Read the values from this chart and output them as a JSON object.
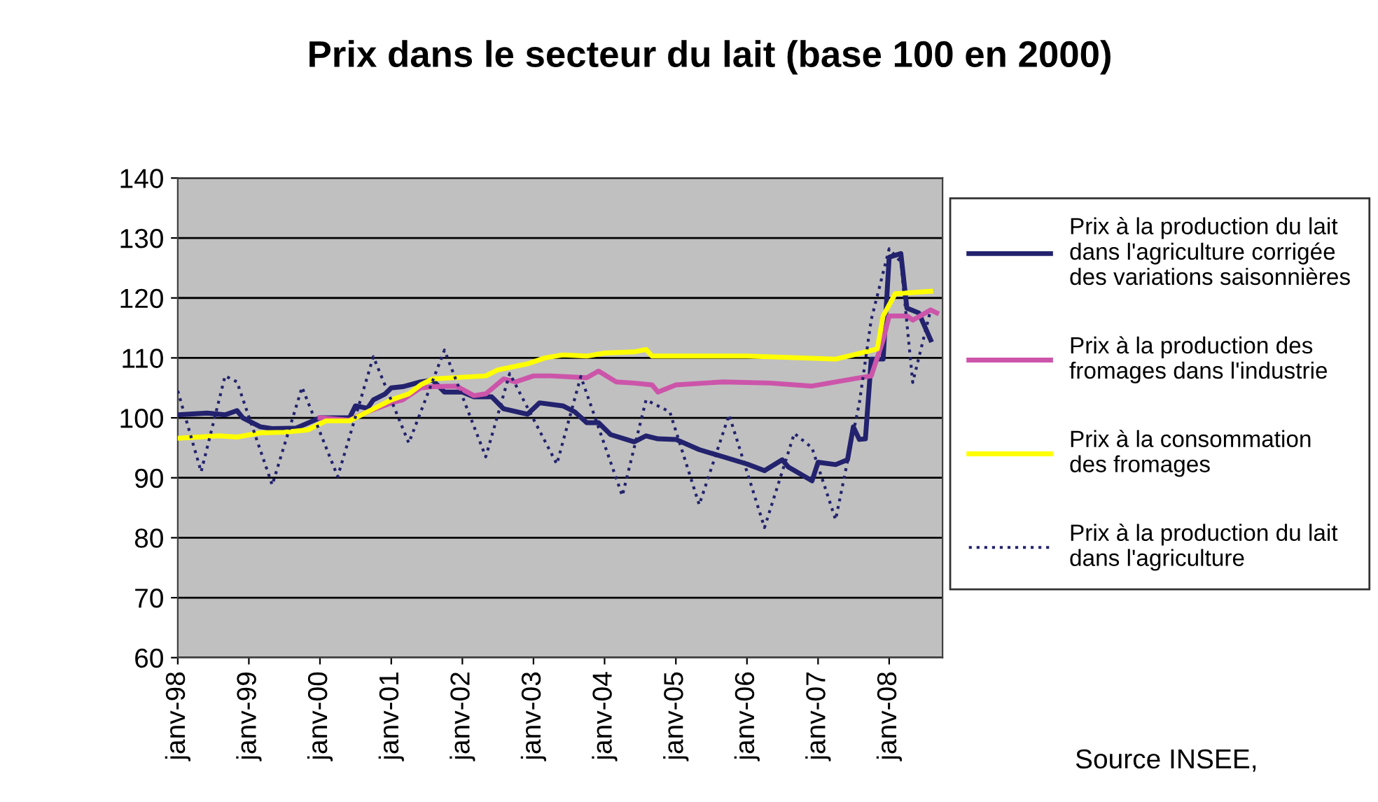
{
  "chart_data": {
    "type": "line",
    "title": "Prix dans le secteur du lait (base 100 en 2000)",
    "xlim": [
      "1998-01",
      "2008-10"
    ],
    "xticks": [
      {
        "value": "1998-01",
        "label": "janv-98"
      },
      {
        "value": "1999-01",
        "label": "janv-99"
      },
      {
        "value": "2000-01",
        "label": "janv-00"
      },
      {
        "value": "2001-01",
        "label": "janv-01"
      },
      {
        "value": "2002-01",
        "label": "janv-02"
      },
      {
        "value": "2003-01",
        "label": "janv-03"
      },
      {
        "value": "2004-01",
        "label": "janv-04"
      },
      {
        "value": "2005-01",
        "label": "janv-05"
      },
      {
        "value": "2006-01",
        "label": "janv-06"
      },
      {
        "value": "2007-01",
        "label": "janv-07"
      },
      {
        "value": "2008-01",
        "label": "janv-08"
      }
    ],
    "ylim": [
      60,
      140
    ],
    "yticks": [
      60,
      70,
      80,
      90,
      100,
      110,
      120,
      130,
      140
    ],
    "grid": "y",
    "legend": "right",
    "annotations": [
      "Source INSEE,"
    ],
    "series": [
      {
        "name": "Prix à la production du lait\ndans l'agriculture corrigée\ndes variations saisonnières",
        "color": "#22226e",
        "line_style": "solid",
        "x": [
          "1998-01",
          "1998-06",
          "1998-09",
          "1998-11",
          "1998-12",
          "1999-03",
          "1999-05",
          "1999-09",
          "2000-01",
          "2000-06",
          "2000-07",
          "2000-09",
          "2000-10",
          "2000-12",
          "2001-01",
          "2001-03",
          "2001-06",
          "2001-08",
          "2001-10",
          "2002-01",
          "2002-03",
          "2002-06",
          "2002-08",
          "2002-12",
          "2003-02",
          "2003-06",
          "2003-08",
          "2003-10",
          "2003-12",
          "2004-02",
          "2004-06",
          "2004-08",
          "2004-10",
          "2005-01",
          "2005-05",
          "2006-01",
          "2006-04",
          "2006-07",
          "2006-08",
          "2006-12",
          "2007-01",
          "2007-04",
          "2007-06",
          "2007-07",
          "2007-08",
          "2007-09",
          "2007-10",
          "2007-12",
          "2008-01",
          "2008-03",
          "2008-04",
          "2008-06",
          "2008-08"
        ],
        "values": [
          100.5,
          100.8,
          100.5,
          101.2,
          100,
          98.5,
          98.2,
          98.3,
          100,
          100,
          102,
          101.6,
          103,
          104,
          105,
          105.2,
          106,
          106.3,
          104.3,
          104.3,
          103.5,
          103.5,
          101.5,
          100.6,
          102.5,
          102,
          101,
          99.2,
          99.2,
          97.2,
          96,
          97,
          96.5,
          96.4,
          94.7,
          92.3,
          91.2,
          93,
          91.8,
          89.5,
          92.6,
          92.2,
          93,
          98.5,
          96.4,
          96.5,
          109.8,
          109.8,
          126.8,
          127.4,
          118.3,
          117.5,
          113
        ]
      },
      {
        "name": "Prix à la production des\nfromages dans l'industrie",
        "color": "#cc55aa",
        "line_style": "solid",
        "x": [
          "2000-01",
          "2000-06",
          "2000-09",
          "2001-01",
          "2001-03",
          "2001-06",
          "2001-08",
          "2001-12",
          "2002-03",
          "2002-05",
          "2002-08",
          "2002-10",
          "2003-01",
          "2003-04",
          "2003-10",
          "2003-12",
          "2004-03",
          "2004-06",
          "2004-09",
          "2004-10",
          "2005-01",
          "2005-09",
          "2006-05",
          "2006-12",
          "2007-07",
          "2007-10",
          "2007-12",
          "2008-01",
          "2008-04",
          "2008-05",
          "2008-08",
          "2008-09"
        ],
        "values": [
          100,
          99.6,
          101,
          102.5,
          103,
          105,
          105.2,
          105.3,
          103.7,
          104,
          106.5,
          106,
          107,
          107,
          106.7,
          107.8,
          106,
          105.8,
          105.5,
          104.3,
          105.5,
          106,
          105.8,
          105.3,
          106.5,
          107,
          113,
          117,
          117,
          116.3,
          118,
          117.5
        ]
      },
      {
        "name": "Prix à la consommation\ndes fromages",
        "color": "#ffff00",
        "line_style": "solid",
        "x": [
          "1998-01",
          "1998-08",
          "1998-11",
          "1999-03",
          "1999-07",
          "1999-11",
          "2000-02",
          "2000-06",
          "2000-09",
          "2001-01",
          "2001-04",
          "2001-06",
          "2001-08",
          "2002-05",
          "2002-07",
          "2002-12",
          "2003-03",
          "2003-06",
          "2003-10",
          "2004-01",
          "2004-06",
          "2004-08",
          "2004-09",
          "2006-01",
          "2007-04",
          "2007-07",
          "2007-11",
          "2007-12",
          "2008-02",
          "2008-08"
        ],
        "values": [
          96.6,
          97,
          96.8,
          97.5,
          97.6,
          98,
          99.5,
          99.5,
          101,
          103,
          104,
          105.5,
          106.5,
          107,
          108,
          109,
          110,
          110.5,
          110.3,
          110.8,
          111,
          111.4,
          110.3,
          110.3,
          109.8,
          110.5,
          111.5,
          117,
          120.7,
          121.1
        ]
      },
      {
        "name": "Prix à la production du lait\ndans l'agriculture",
        "color": "#22226e",
        "line_style": "dotted",
        "x": [
          "1998-01",
          "1998-05",
          "1998-09",
          "1998-11",
          "1999-05",
          "1999-10",
          "2000-04",
          "2000-10",
          "2001-04",
          "2001-10",
          "2002-05",
          "2002-09",
          "2003-05",
          "2003-09",
          "2004-04",
          "2004-08",
          "2004-12",
          "2005-05",
          "2005-10",
          "2006-04",
          "2006-09",
          "2006-12",
          "2007-04",
          "2007-08",
          "2007-10",
          "2008-01",
          "2008-03",
          "2008-05",
          "2008-06",
          "2008-08"
        ],
        "values": [
          104.5,
          91,
          107,
          106,
          88.8,
          105.1,
          90.2,
          110.2,
          95.8,
          111.3,
          93.5,
          107.4,
          92.3,
          106.9,
          87,
          103,
          101,
          85.5,
          100.5,
          81.7,
          97.4,
          95,
          83,
          102.5,
          116.4,
          128.2,
          126,
          105.9,
          110,
          118
        ]
      }
    ]
  }
}
